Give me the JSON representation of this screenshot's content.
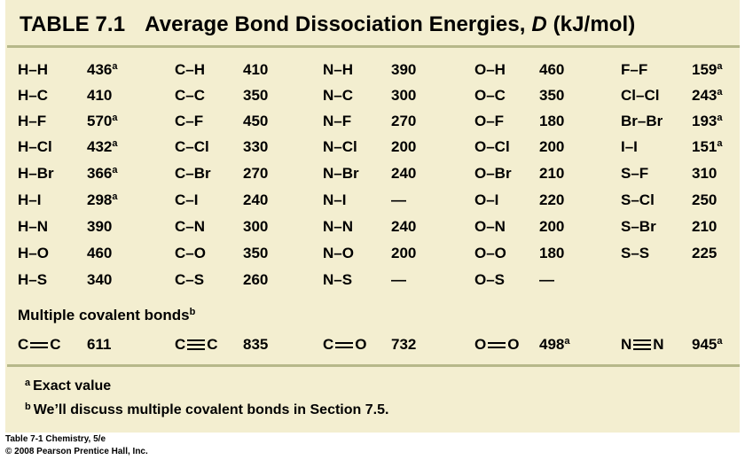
{
  "title": {
    "label": "TABLE 7.1",
    "text": "Average Bond Dissociation Energies,",
    "symbol": "D",
    "unit": "(kJ/mol)"
  },
  "columns": [
    [
      {
        "bond": "H–H",
        "value": "436",
        "note": "a"
      },
      {
        "bond": "H–C",
        "value": "410",
        "note": ""
      },
      {
        "bond": "H–F",
        "value": "570",
        "note": "a"
      },
      {
        "bond": "H–Cl",
        "value": "432",
        "note": "a"
      },
      {
        "bond": "H–Br",
        "value": "366",
        "note": "a"
      },
      {
        "bond": "H–I",
        "value": "298",
        "note": "a"
      },
      {
        "bond": "H–N",
        "value": "390",
        "note": ""
      },
      {
        "bond": "H–O",
        "value": "460",
        "note": ""
      },
      {
        "bond": "H–S",
        "value": "340",
        "note": ""
      }
    ],
    [
      {
        "bond": "C–H",
        "value": "410",
        "note": ""
      },
      {
        "bond": "C–C",
        "value": "350",
        "note": ""
      },
      {
        "bond": "C–F",
        "value": "450",
        "note": ""
      },
      {
        "bond": "C–Cl",
        "value": "330",
        "note": ""
      },
      {
        "bond": "C–Br",
        "value": "270",
        "note": ""
      },
      {
        "bond": "C–I",
        "value": "240",
        "note": ""
      },
      {
        "bond": "C–N",
        "value": "300",
        "note": ""
      },
      {
        "bond": "C–O",
        "value": "350",
        "note": ""
      },
      {
        "bond": "C–S",
        "value": "260",
        "note": ""
      }
    ],
    [
      {
        "bond": "N–H",
        "value": "390",
        "note": ""
      },
      {
        "bond": "N–C",
        "value": "300",
        "note": ""
      },
      {
        "bond": "N–F",
        "value": "270",
        "note": ""
      },
      {
        "bond": "N–Cl",
        "value": "200",
        "note": ""
      },
      {
        "bond": "N–Br",
        "value": "240",
        "note": ""
      },
      {
        "bond": "N–I",
        "value": "—",
        "note": ""
      },
      {
        "bond": "N–N",
        "value": "240",
        "note": ""
      },
      {
        "bond": "N–O",
        "value": "200",
        "note": ""
      },
      {
        "bond": "N–S",
        "value": "—",
        "note": ""
      }
    ],
    [
      {
        "bond": "O–H",
        "value": "460",
        "note": ""
      },
      {
        "bond": "O–C",
        "value": "350",
        "note": ""
      },
      {
        "bond": "O–F",
        "value": "180",
        "note": ""
      },
      {
        "bond": "O–Cl",
        "value": "200",
        "note": ""
      },
      {
        "bond": "O–Br",
        "value": "210",
        "note": ""
      },
      {
        "bond": "O–I",
        "value": "220",
        "note": ""
      },
      {
        "bond": "O–N",
        "value": "200",
        "note": ""
      },
      {
        "bond": "O–O",
        "value": "180",
        "note": ""
      },
      {
        "bond": "O–S",
        "value": "—",
        "note": ""
      }
    ],
    [
      {
        "bond": "F–F",
        "value": "159",
        "note": "a"
      },
      {
        "bond": "Cl–Cl",
        "value": "243",
        "note": "a"
      },
      {
        "bond": "Br–Br",
        "value": "193",
        "note": "a"
      },
      {
        "bond": "I–I",
        "value": "151",
        "note": "a"
      },
      {
        "bond": "S–F",
        "value": "310",
        "note": ""
      },
      {
        "bond": "S–Cl",
        "value": "250",
        "note": ""
      },
      {
        "bond": "S–Br",
        "value": "210",
        "note": ""
      },
      {
        "bond": "S–S",
        "value": "225",
        "note": ""
      }
    ]
  ],
  "multiple": {
    "heading": "Multiple covalent bonds",
    "heading_note": "b",
    "bonds": [
      {
        "left": "C",
        "right": "C",
        "order": 2,
        "value": "611",
        "note": ""
      },
      {
        "left": "C",
        "right": "C",
        "order": 3,
        "value": "835",
        "note": ""
      },
      {
        "left": "C",
        "right": "O",
        "order": 2,
        "value": "732",
        "note": ""
      },
      {
        "left": "O",
        "right": "O",
        "order": 2,
        "value": "498",
        "note": "a"
      },
      {
        "left": "N",
        "right": "N",
        "order": 3,
        "value": "945",
        "note": "a"
      }
    ]
  },
  "footnotes": [
    {
      "mark": "a",
      "text": "Exact value"
    },
    {
      "mark": "b",
      "text": "We’ll discuss multiple covalent bonds in Section 7.5."
    }
  ],
  "credit": [
    "Table 7-1  Chemistry, 5/e",
    "© 2008 Pearson Prentice Hall, Inc."
  ],
  "colors": {
    "panel": "#f3eed0",
    "rule": "#b6b88a"
  }
}
